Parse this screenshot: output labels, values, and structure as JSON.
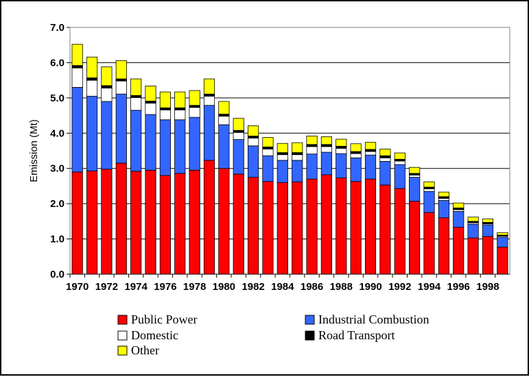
{
  "chart_data": {
    "type": "bar",
    "stacked": true,
    "title": "",
    "xlabel": "",
    "ylabel": "Emission (Mt)",
    "ylim": [
      0,
      7
    ],
    "y_ticks": [
      "0.0",
      "1.0",
      "2.0",
      "3.0",
      "4.0",
      "5.0",
      "6.0",
      "7.0"
    ],
    "x_tick_labels": [
      "1970",
      "1972",
      "1974",
      "1976",
      "1978",
      "1980",
      "1982",
      "1984",
      "1986",
      "1988",
      "1990",
      "1992",
      "1994",
      "1996",
      "1998"
    ],
    "grid": true,
    "legend_position": "bottom",
    "categories": [
      "1970",
      "1971",
      "1972",
      "1973",
      "1974",
      "1975",
      "1976",
      "1977",
      "1978",
      "1979",
      "1980",
      "1981",
      "1982",
      "1983",
      "1984",
      "1985",
      "1986",
      "1987",
      "1988",
      "1989",
      "1990",
      "1991",
      "1992",
      "1993",
      "1994",
      "1995",
      "1996",
      "1997",
      "1998",
      "1999"
    ],
    "series": [
      {
        "name": "Public Power",
        "color": "#ff0000",
        "values": [
          2.9,
          2.93,
          2.98,
          3.15,
          2.92,
          2.95,
          2.8,
          2.86,
          2.95,
          3.23,
          3.0,
          2.84,
          2.75,
          2.63,
          2.6,
          2.62,
          2.7,
          2.82,
          2.73,
          2.63,
          2.7,
          2.53,
          2.43,
          2.07,
          1.75,
          1.6,
          1.33,
          1.03,
          1.07,
          0.77
        ]
      },
      {
        "name": "Industrial Combustion",
        "color": "#3366ff",
        "values": [
          2.4,
          2.12,
          1.92,
          1.96,
          1.73,
          1.58,
          1.58,
          1.52,
          1.5,
          1.56,
          1.24,
          0.98,
          0.89,
          0.73,
          0.63,
          0.61,
          0.71,
          0.64,
          0.69,
          0.67,
          0.68,
          0.67,
          0.68,
          0.68,
          0.6,
          0.49,
          0.45,
          0.39,
          0.33,
          0.28
        ]
      },
      {
        "name": "Domestic",
        "color": "#ffffff",
        "values": [
          0.55,
          0.45,
          0.38,
          0.37,
          0.36,
          0.32,
          0.28,
          0.28,
          0.28,
          0.26,
          0.24,
          0.2,
          0.22,
          0.19,
          0.16,
          0.16,
          0.21,
          0.16,
          0.15,
          0.12,
          0.1,
          0.1,
          0.1,
          0.06,
          0.07,
          0.06,
          0.05,
          0.04,
          0.03,
          0.03
        ]
      },
      {
        "name": "Road Transport",
        "color": "#000000",
        "values": [
          0.07,
          0.07,
          0.07,
          0.06,
          0.06,
          0.06,
          0.06,
          0.06,
          0.06,
          0.06,
          0.06,
          0.06,
          0.06,
          0.06,
          0.06,
          0.06,
          0.06,
          0.06,
          0.06,
          0.06,
          0.06,
          0.06,
          0.05,
          0.05,
          0.05,
          0.05,
          0.05,
          0.04,
          0.04,
          0.03
        ]
      },
      {
        "name": "Other",
        "color": "#ffff00",
        "values": [
          0.6,
          0.59,
          0.53,
          0.52,
          0.47,
          0.43,
          0.45,
          0.45,
          0.42,
          0.43,
          0.36,
          0.34,
          0.29,
          0.27,
          0.26,
          0.28,
          0.24,
          0.22,
          0.2,
          0.22,
          0.2,
          0.19,
          0.18,
          0.17,
          0.15,
          0.13,
          0.14,
          0.12,
          0.1,
          0.07
        ]
      }
    ]
  }
}
